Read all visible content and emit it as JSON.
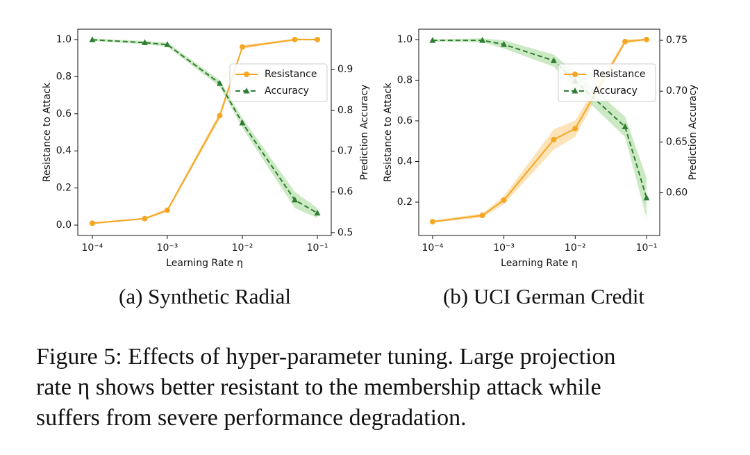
{
  "chart_data": [
    {
      "type": "line",
      "caption": "(a) Synthetic Radial",
      "xlabel": "Learning Rate η",
      "ylabel": "Resistance to Attack",
      "y2label": "Prediction Accuracy",
      "xscale": "log",
      "legend": "upper right",
      "x": [
        0.0001,
        0.0005,
        0.001,
        0.005,
        0.01,
        0.05,
        0.1
      ],
      "xlim": [
        6.4e-05,
        0.153
      ],
      "xticks": [
        {
          "value": 0.0001,
          "label": "10⁻⁴"
        },
        {
          "value": 0.001,
          "label": "10⁻³"
        },
        {
          "value": 0.01,
          "label": "10⁻²"
        },
        {
          "value": 0.1,
          "label": "10⁻¹"
        }
      ],
      "ylim": [
        -0.056,
        1.056
      ],
      "yticks": [
        {
          "value": 0,
          "label": "0.0"
        },
        0.2,
        0.4,
        0.6,
        0.8,
        {
          "value": 1,
          "label": "1.0"
        }
      ],
      "y2lim": [
        0.493,
        0.999
      ],
      "y2ticks": [
        0.5,
        0.6,
        0.7,
        0.8,
        0.9
      ],
      "series": [
        {
          "name": "Resistance",
          "color": "#f5a623",
          "band_color": "#fbd79a",
          "marker": "circle",
          "dash": false,
          "values": [
            0.01,
            0.035,
            0.08,
            0.59,
            0.96,
            1.0,
            1.0
          ],
          "errors": [
            0.005,
            0.005,
            0.01,
            0.02,
            0.01,
            0.005,
            0.005
          ]
        },
        {
          "name": "Accuracy",
          "color": "#2e7d32",
          "band_color": "#b5dfa9",
          "marker": "triangle",
          "dash": true,
          "axis": "y2",
          "values": [
            0.973,
            0.966,
            0.961,
            0.866,
            0.769,
            0.58,
            0.548
          ],
          "errors": [
            0.003,
            0.004,
            0.005,
            0.008,
            0.012,
            0.02,
            0.012
          ]
        }
      ]
    },
    {
      "type": "line",
      "caption": "(b) UCI German Credit",
      "xlabel": "Learning Rate η",
      "ylabel": "Resistance to Attack",
      "y2label": "Prediction Accuracy",
      "xscale": "log",
      "legend": "upper right",
      "x": [
        0.0001,
        0.0005,
        0.001,
        0.005,
        0.01,
        0.05,
        0.1
      ],
      "xlim": [
        6.4e-05,
        0.153
      ],
      "xticks": [
        {
          "value": 0.0001,
          "label": "10⁻⁴"
        },
        {
          "value": 0.001,
          "label": "10⁻³"
        },
        {
          "value": 0.01,
          "label": "10⁻²"
        },
        {
          "value": 0.1,
          "label": "10⁻¹"
        }
      ],
      "ylim": [
        0.036,
        1.051
      ],
      "yticks": [
        0.2,
        0.4,
        0.6,
        0.8,
        {
          "value": 1,
          "label": "1.0"
        }
      ],
      "y2lim": [
        0.558,
        0.761
      ],
      "y2ticks": [
        {
          "value": 0.6,
          "label": "0.60"
        },
        0.65,
        {
          "value": 0.7,
          "label": "0.70"
        },
        0.75
      ],
      "series": [
        {
          "name": "Resistance",
          "color": "#f5a623",
          "band_color": "#fbd79a",
          "marker": "circle",
          "dash": false,
          "values": [
            0.104,
            0.135,
            0.21,
            0.508,
            0.562,
            0.99,
            1.0
          ],
          "errors": [
            0.005,
            0.01,
            0.02,
            0.05,
            0.04,
            0.01,
            0.005
          ]
        },
        {
          "name": "Accuracy",
          "color": "#2e7d32",
          "band_color": "#b5dfa9",
          "marker": "triangle",
          "dash": true,
          "axis": "y2",
          "values": [
            0.75,
            0.75,
            0.746,
            0.73,
            0.71,
            0.665,
            0.595
          ],
          "errors": [
            0.001,
            0.002,
            0.004,
            0.006,
            0.008,
            0.01,
            0.02
          ]
        }
      ]
    }
  ],
  "figure_caption": [
    "Figure 5: Effects of hyper-parameter tuning. Large projection",
    "rate η shows better resistant to the membership attack while",
    "suffers from severe performance degradation."
  ]
}
